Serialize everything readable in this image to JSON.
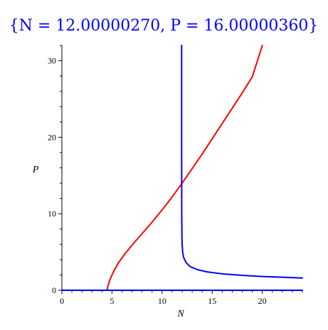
{
  "chart_data": {
    "type": "line",
    "title": "{N = 12.00000270, P = 16.00000360}",
    "xlabel": "N",
    "ylabel": "P",
    "xlim": [
      0,
      24
    ],
    "ylim": [
      0,
      32
    ],
    "xticks": [
      0,
      5,
      10,
      15,
      20
    ],
    "yticks": [
      0,
      10,
      20,
      30
    ],
    "grid": false,
    "legend": "none",
    "series": [
      {
        "color": "#ff0000",
        "x": [
          4.5,
          4.6,
          4.8,
          5.0,
          5.3,
          5.7,
          6.2,
          7.0,
          8.0,
          9.0,
          10.0,
          11.0,
          12.0,
          13.0,
          14.0,
          15.0,
          16.0,
          17.0,
          18.0,
          19.0,
          20.0
        ],
        "y": [
          0,
          0.6,
          1.4,
          2.0,
          2.8,
          3.7,
          4.6,
          5.9,
          7.4,
          8.9,
          10.5,
          12.2,
          14.0,
          15.9,
          17.8,
          19.8,
          21.8,
          23.8,
          25.8,
          27.9,
          32.0
        ]
      },
      {
        "color": "#ff0000",
        "x": [
          0,
          4.5
        ],
        "y": [
          0,
          0
        ]
      },
      {
        "color": "#0000ff",
        "x": [
          11.95,
          11.95,
          11.96,
          11.98,
          12.0,
          12.05,
          12.15,
          12.4,
          12.8,
          13.5,
          14.5,
          16.0,
          18.0,
          20.0,
          22.0,
          24.0
        ],
        "y": [
          32.0,
          20.0,
          10.0,
          7.0,
          6.0,
          5.0,
          4.3,
          3.6,
          3.1,
          2.7,
          2.4,
          2.15,
          1.95,
          1.8,
          1.7,
          1.6
        ]
      },
      {
        "color": "#0000ff",
        "x": [
          0,
          24
        ],
        "y": [
          0,
          0
        ]
      }
    ]
  }
}
